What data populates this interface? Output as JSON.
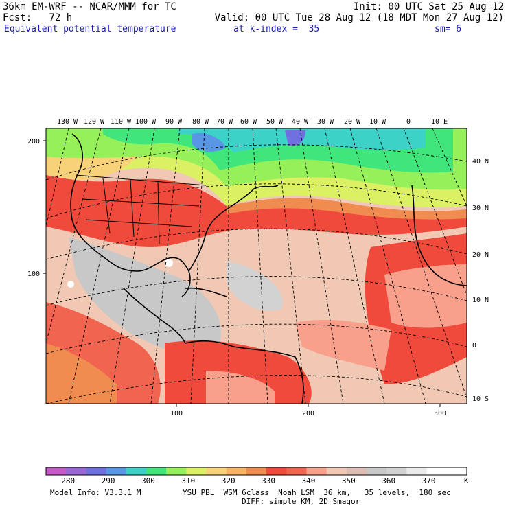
{
  "header": {
    "model_title": "36km EM-WRF -- NCAR/MMM for TC",
    "init": "Init: 00 UTC Sat 25 Aug 12",
    "fcst": "Fcst:   72 h",
    "valid": "Valid: 00 UTC Tue 28 Aug 12 (18 MDT Mon 27 Aug 12)",
    "field": "Equivalent potential temperature",
    "level": "at k-index =  35",
    "smoothing": "sm= 6"
  },
  "map": {
    "top_lon_labels": [
      "130 W",
      "120 W",
      "110 W",
      "100 W",
      "90 W",
      "80 W",
      "70 W",
      "60 W",
      "50 W",
      "40 W",
      "30 W",
      "20 W",
      "10 W",
      "0",
      "10 E"
    ],
    "right_lat_labels": [
      "40 N",
      "30 N",
      "20 N",
      "10 N",
      "0",
      "10 S"
    ],
    "left_axis_ticks": [
      "200",
      "100"
    ],
    "bottom_axis_ticks": [
      "100",
      "200",
      "300"
    ]
  },
  "colorbar": {
    "levels": [
      "280",
      "290",
      "300",
      "310",
      "320",
      "330",
      "340",
      "350",
      "360",
      "370"
    ],
    "unit": "K",
    "colors": [
      "#c85ac8",
      "#9a68d6",
      "#7070e0",
      "#5a96e6",
      "#3cd2c8",
      "#40e67c",
      "#96f05a",
      "#dcf064",
      "#f8d278",
      "#f8b464",
      "#f08c50",
      "#f04a3c",
      "#f06450",
      "#f8a08c",
      "#f0c8b4",
      "#dcbeb4",
      "#c8c8c8",
      "#d2d2d2",
      "#ebebeb",
      "#ffffff",
      "#ffffff"
    ]
  },
  "footer": {
    "model_info": "Model Info: V3.3.1 M",
    "physics": "YSU PBL  WSM 6class  Noah LSM  36 km,   35 levels,  180 sec",
    "diffusion": "DIFF: simple KM, 2D Smagor"
  }
}
